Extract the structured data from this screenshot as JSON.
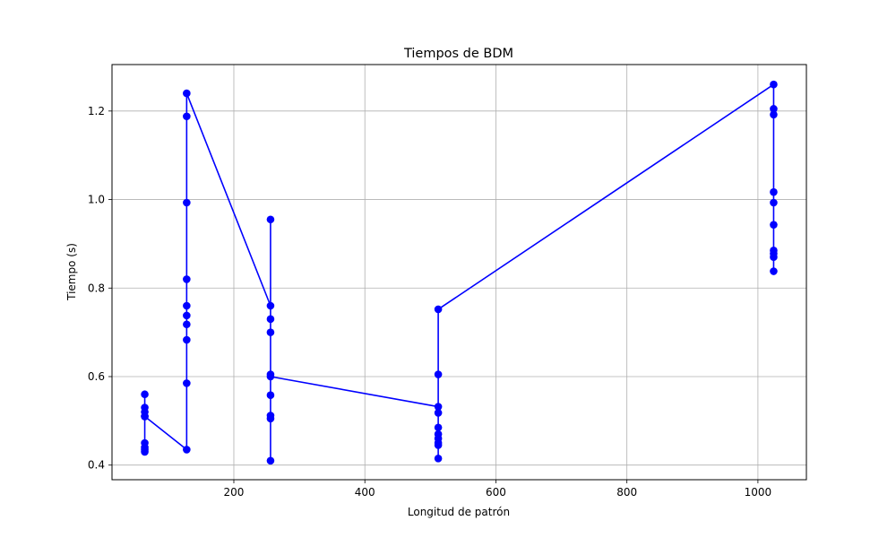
{
  "chart_data": {
    "type": "line",
    "title": "Tiempos de BDM",
    "xlabel": "Longitud de patrón",
    "ylabel": "Tiempo (s)",
    "xlim": [
      14,
      1074
    ],
    "ylim": [
      0.367,
      1.305
    ],
    "xticks": [
      200,
      400,
      600,
      800,
      1000
    ],
    "yticks": [
      0.4,
      0.6,
      0.8,
      1.0,
      1.2
    ],
    "xtick_labels": [
      "200",
      "400",
      "600",
      "800",
      "1000"
    ],
    "ytick_labels": [
      "0.4",
      "0.6",
      "0.8",
      "1.0",
      "1.2"
    ],
    "grid": true,
    "series": [
      {
        "color": "#0000ff",
        "marker": "circle",
        "points": [
          [
            64,
            0.56
          ],
          [
            64,
            0.53
          ],
          [
            64,
            0.52
          ],
          [
            64,
            0.51
          ],
          [
            64,
            0.45
          ],
          [
            64,
            0.44
          ],
          [
            64,
            0.435
          ],
          [
            64,
            0.43
          ],
          [
            64,
            0.51
          ],
          [
            128,
            0.435
          ],
          [
            128,
            0.585
          ],
          [
            128,
            0.683
          ],
          [
            128,
            0.718
          ],
          [
            128,
            0.738
          ],
          [
            128,
            0.76
          ],
          [
            128,
            0.82
          ],
          [
            128,
            0.993
          ],
          [
            128,
            1.188
          ],
          [
            128,
            1.24
          ],
          [
            256,
            0.76
          ],
          [
            256,
            0.955
          ],
          [
            256,
            0.73
          ],
          [
            256,
            0.7
          ],
          [
            256,
            0.605
          ],
          [
            256,
            0.558
          ],
          [
            256,
            0.512
          ],
          [
            256,
            0.505
          ],
          [
            256,
            0.41
          ],
          [
            256,
            0.6
          ],
          [
            512,
            0.532
          ],
          [
            512,
            0.518
          ],
          [
            512,
            0.485
          ],
          [
            512,
            0.47
          ],
          [
            512,
            0.46
          ],
          [
            512,
            0.45
          ],
          [
            512,
            0.445
          ],
          [
            512,
            0.415
          ],
          [
            512,
            0.605
          ],
          [
            512,
            0.752
          ],
          [
            1024,
            1.26
          ],
          [
            1024,
            1.205
          ],
          [
            1024,
            1.192
          ],
          [
            1024,
            1.017
          ],
          [
            1024,
            0.993
          ],
          [
            1024,
            0.943
          ],
          [
            1024,
            0.885
          ],
          [
            1024,
            0.878
          ],
          [
            1024,
            0.87
          ],
          [
            1024,
            0.838
          ]
        ]
      }
    ]
  }
}
